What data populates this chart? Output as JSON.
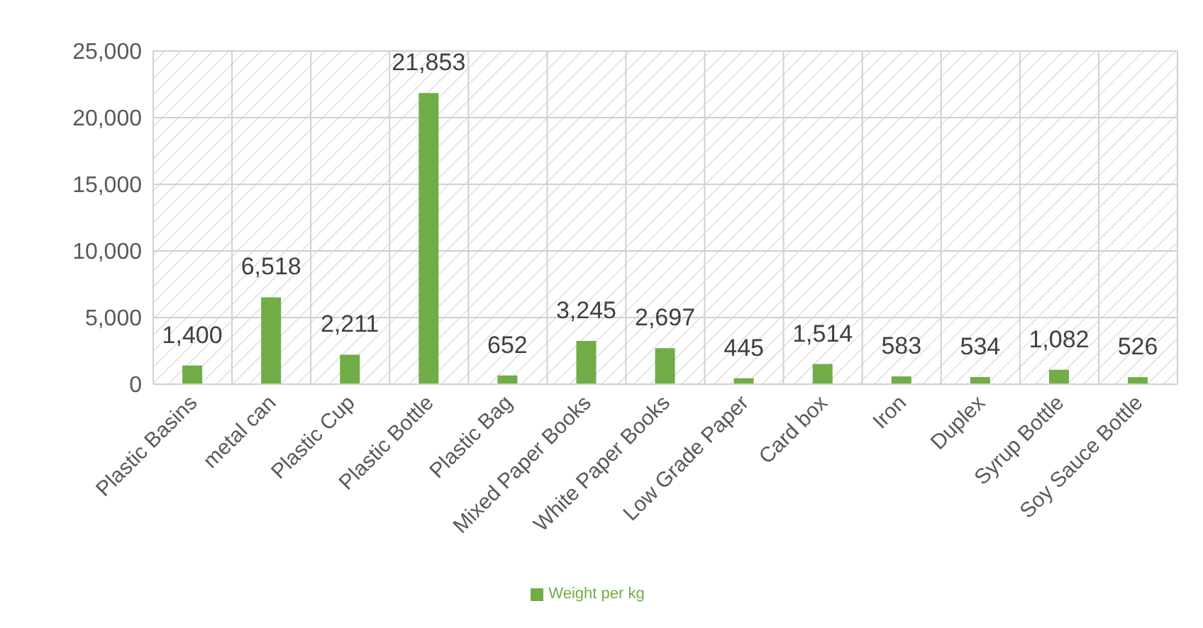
{
  "chart_data": {
    "type": "bar",
    "categories": [
      "Plastic Basins",
      "metal can",
      "Plastic Cup",
      "Plastic Bottle",
      "Plastic Bag",
      "Mixed Paper Books",
      "White Paper Books",
      "Low Grade Paper",
      "Card box",
      "Iron",
      "Duplex",
      "Syrup Bottle",
      "Soy Sauce Bottle"
    ],
    "series": [
      {
        "name": "Weight per kg",
        "color": "#70ad47",
        "values": [
          1400,
          6518,
          2211,
          21853,
          652,
          3245,
          2697,
          445,
          1514,
          583,
          534,
          1082,
          526
        ],
        "value_labels": [
          "1,400",
          "6,518",
          "2,211",
          "21,853",
          "652",
          "3,245",
          "2,697",
          "445",
          "1,514",
          "583",
          "534",
          "1,082",
          "526"
        ]
      }
    ],
    "ylim": [
      0,
      25000
    ],
    "yticks": [
      0,
      {
        "value": 5000,
        "label": "5,000"
      },
      {
        "value": 10000,
        "label": "10,000"
      },
      {
        "value": 15000,
        "label": "15,000"
      },
      {
        "value": 20000,
        "label": "20,000"
      },
      {
        "value": 25000,
        "label": "25,000"
      }
    ],
    "grid": true,
    "legend": "bottom"
  }
}
